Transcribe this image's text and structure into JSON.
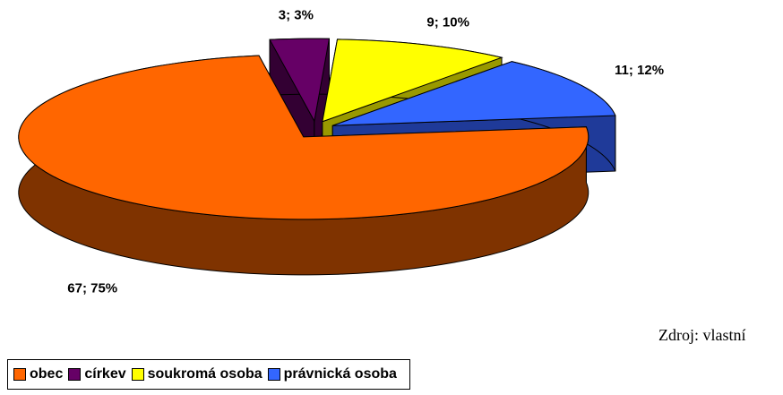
{
  "chart_data": {
    "type": "pie3d",
    "categories": [
      "obec",
      "církev",
      "soukromá osoba",
      "právnická osoba"
    ],
    "values": [
      67,
      3,
      9,
      11
    ],
    "value_labels": [
      "67; 75%",
      "3; 3%",
      "9; 10%",
      "11; 12%"
    ],
    "colors": [
      "#ff6600",
      "#660066",
      "#ffff00",
      "#3366ff"
    ],
    "side_colors": [
      "#7f3300",
      "#330033",
      "#999900",
      "#1f3a99"
    ],
    "source": "Zdroj: vlastní",
    "legend": "bottom-left"
  }
}
